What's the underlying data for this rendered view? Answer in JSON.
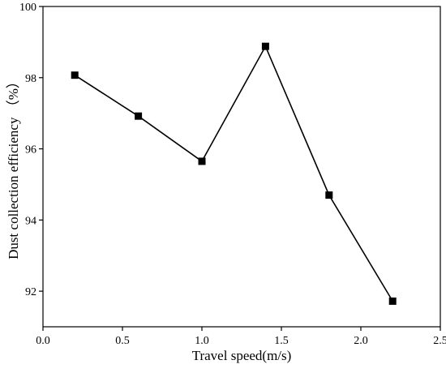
{
  "chart_data": {
    "type": "line",
    "title": "",
    "xlabel": "Travel speed(m/s)",
    "ylabel": "Dust collection efficiency （%）",
    "xlim": [
      0.0,
      2.5
    ],
    "ylim": [
      91.0,
      100.0
    ],
    "x_ticks": [
      "0.0",
      "0.5",
      "1.0",
      "1.5",
      "2.0",
      "2.5"
    ],
    "x_tick_values": [
      0.0,
      0.5,
      1.0,
      1.5,
      2.0,
      2.5
    ],
    "y_ticks": [
      "92",
      "94",
      "96",
      "98",
      "100"
    ],
    "y_tick_values": [
      92,
      94,
      96,
      98,
      100
    ],
    "grid": false,
    "legend": "none",
    "marker": "square",
    "line_color": "#000000",
    "series": [
      {
        "x": [
          0.2,
          0.6,
          1.0,
          1.4,
          1.8,
          2.2
        ],
        "values": [
          98.07,
          96.92,
          95.65,
          98.88,
          94.7,
          91.72
        ]
      }
    ]
  }
}
